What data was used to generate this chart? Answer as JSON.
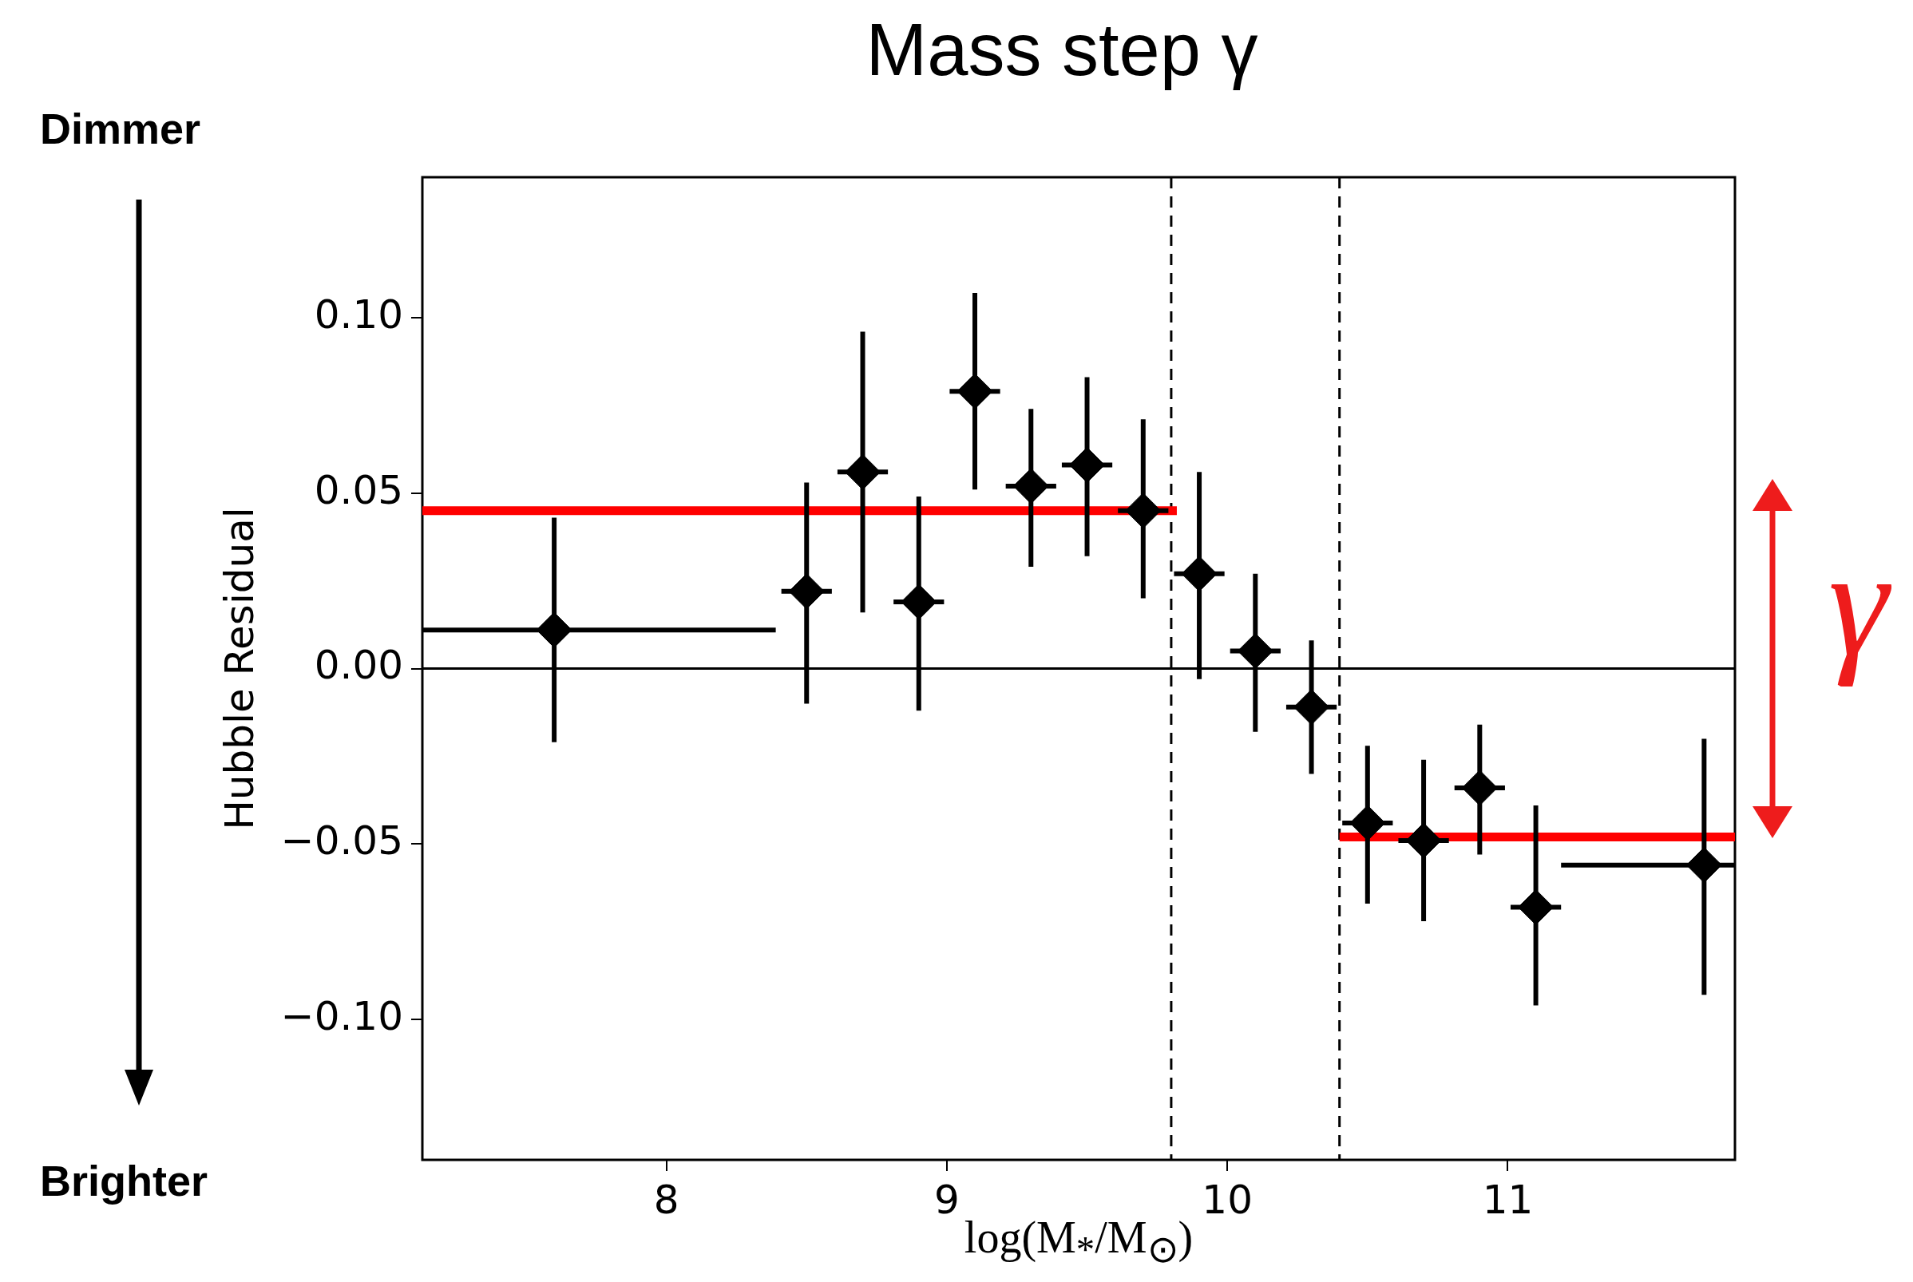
{
  "chart_data": {
    "type": "scatter",
    "title": "Mass step γ",
    "xlabel": "log(M$_{*}$/M$_{⊙}$)",
    "ylabel": "Hubble Residual",
    "annotations": [
      "Dimmer",
      "Brighter",
      "γ"
    ],
    "xlim": [
      7.13,
      11.81
    ],
    "ylim": [
      -0.14,
      0.14
    ],
    "xticks": [
      8,
      9,
      10,
      11
    ],
    "yticks": [
      {
        "value": -0.1,
        "label": "−0.10"
      },
      {
        "value": -0.05,
        "label": "−0.05"
      },
      {
        "value": 0,
        "label": "0.00"
      },
      {
        "value": 0.05,
        "label": "0.05"
      },
      {
        "value": 0.1,
        "label": "0.10"
      }
    ],
    "grid": false,
    "legend": false,
    "ref_lines": [
      {
        "axis": "x",
        "value": 9.8,
        "color": "#000000",
        "line_style": "dashed"
      },
      {
        "axis": "x",
        "value": 10.4,
        "color": "#000000",
        "line_style": "dashed"
      },
      {
        "axis": "y",
        "value": 0,
        "color": "#000000",
        "line_style": "solid"
      }
    ],
    "series": [
      {
        "marker": "diamond",
        "color": "#000000",
        "x": [
          7.6,
          8.5,
          8.7,
          8.9,
          9.1,
          9.3,
          9.5,
          9.7,
          9.9,
          10.1,
          10.3,
          10.5,
          10.7,
          10.9,
          11.1,
          11.7
        ],
        "values": [
          0.011,
          0.022,
          0.056,
          0.019,
          0.079,
          0.052,
          0.058,
          0.045,
          0.027,
          0.005,
          -0.011,
          -0.044,
          -0.049,
          -0.034,
          -0.068,
          -0.056
        ],
        "errors": [
          [
            -0.021,
            0.043
          ],
          [
            -0.01,
            0.053
          ],
          [
            0.016,
            0.096
          ],
          [
            -0.012,
            0.049
          ],
          [
            0.051,
            0.107
          ],
          [
            0.029,
            0.074
          ],
          [
            0.032,
            0.083
          ],
          [
            0.02,
            0.071
          ],
          [
            -0.003,
            0.056
          ],
          [
            -0.018,
            0.027
          ],
          [
            -0.03,
            0.008
          ],
          [
            -0.067,
            -0.022
          ],
          [
            -0.072,
            -0.026
          ],
          [
            -0.053,
            -0.016
          ],
          [
            -0.096,
            -0.039
          ],
          [
            -0.093,
            -0.02
          ]
        ],
        "xerrors": [
          [
            7.13,
            8.39
          ],
          0.09,
          0.09,
          0.09,
          0.09,
          0.09,
          0.09,
          0.09,
          0.09,
          0.09,
          0.09,
          0.09,
          0.09,
          0.09,
          0.09,
          [
            11.19,
            11.81
          ]
        ]
      },
      {
        "type": "line",
        "color": "#ff0000",
        "x": [
          7.13,
          9.82
        ],
        "values": [
          0.045,
          0.045
        ]
      },
      {
        "type": "line",
        "color": "#ff0000",
        "x": [
          10.4,
          11.81
        ],
        "values": [
          -0.048,
          -0.048
        ]
      }
    ]
  }
}
